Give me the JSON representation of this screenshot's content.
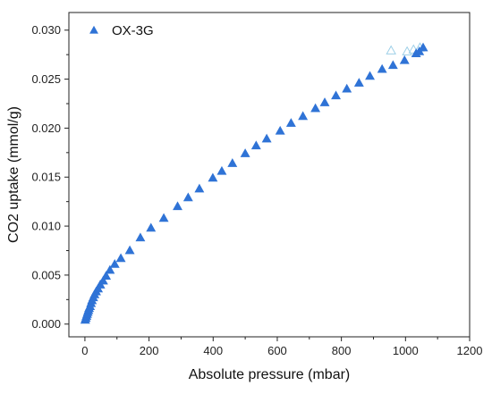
{
  "chart_data": {
    "type": "scatter",
    "title": "",
    "xlabel": "Absolute pressure (mbar)",
    "ylabel": "CO2 uptake (mmol/g)",
    "xlim": [
      -50,
      1200
    ],
    "ylim": [
      -0.0013,
      0.0318
    ],
    "xticks": [
      {
        "value": 0,
        "label": "0"
      },
      {
        "value": 200,
        "label": "200"
      },
      {
        "value": 400,
        "label": "400"
      },
      {
        "value": 600,
        "label": "600"
      },
      {
        "value": 800,
        "label": "800"
      },
      {
        "value": 1000,
        "label": "1000"
      },
      {
        "value": 1200,
        "label": "1200"
      }
    ],
    "yticks": [
      {
        "value": 0.0,
        "label": "0.000"
      },
      {
        "value": 0.005,
        "label": "0.005"
      },
      {
        "value": 0.01,
        "label": "0.010"
      },
      {
        "value": 0.015,
        "label": "0.015"
      },
      {
        "value": 0.02,
        "label": "0.020"
      },
      {
        "value": 0.025,
        "label": "0.025"
      },
      {
        "value": 0.03,
        "label": "0.030"
      }
    ],
    "grid": false,
    "legend_position": "top-left",
    "series": [
      {
        "name": "OX-3G",
        "marker": "filled-triangle",
        "color": "#2f73d6",
        "points": [
          [
            1,
            0.0004
          ],
          [
            3,
            0.0006
          ],
          [
            5,
            0.0008
          ],
          [
            7,
            0.001
          ],
          [
            9,
            0.0012
          ],
          [
            11,
            0.0014
          ],
          [
            13,
            0.0016
          ],
          [
            16,
            0.0018
          ],
          [
            19,
            0.0021
          ],
          [
            22,
            0.0024
          ],
          [
            26,
            0.0027
          ],
          [
            30,
            0.003
          ],
          [
            35,
            0.0033
          ],
          [
            41,
            0.0036
          ],
          [
            48,
            0.004
          ],
          [
            57,
            0.0044
          ],
          [
            66,
            0.0049
          ],
          [
            78,
            0.0055
          ],
          [
            93,
            0.0061
          ],
          [
            112,
            0.0067
          ],
          [
            140,
            0.0075
          ],
          [
            173,
            0.0088
          ],
          [
            206,
            0.0098
          ],
          [
            246,
            0.0108
          ],
          [
            289,
            0.012
          ],
          [
            322,
            0.0129
          ],
          [
            357,
            0.0138
          ],
          [
            399,
            0.0149
          ],
          [
            427,
            0.0156
          ],
          [
            460,
            0.0164
          ],
          [
            500,
            0.0174
          ],
          [
            534,
            0.0182
          ],
          [
            567,
            0.0189
          ],
          [
            609,
            0.0197
          ],
          [
            643,
            0.0205
          ],
          [
            680,
            0.0212
          ],
          [
            719,
            0.022
          ],
          [
            748,
            0.0226
          ],
          [
            783,
            0.0233
          ],
          [
            817,
            0.024
          ],
          [
            855,
            0.0246
          ],
          [
            889,
            0.0253
          ],
          [
            927,
            0.026
          ],
          [
            961,
            0.0264
          ],
          [
            997,
            0.0269
          ],
          [
            1033,
            0.0276
          ],
          [
            1043,
            0.0278
          ],
          [
            1055,
            0.0282
          ]
        ]
      },
      {
        "name": "",
        "marker": "open-triangle",
        "color": "#9fd0e8",
        "points": [
          [
            955,
            0.0279
          ],
          [
            1005,
            0.0278
          ],
          [
            1025,
            0.028
          ],
          [
            1045,
            0.0282
          ]
        ]
      }
    ]
  }
}
